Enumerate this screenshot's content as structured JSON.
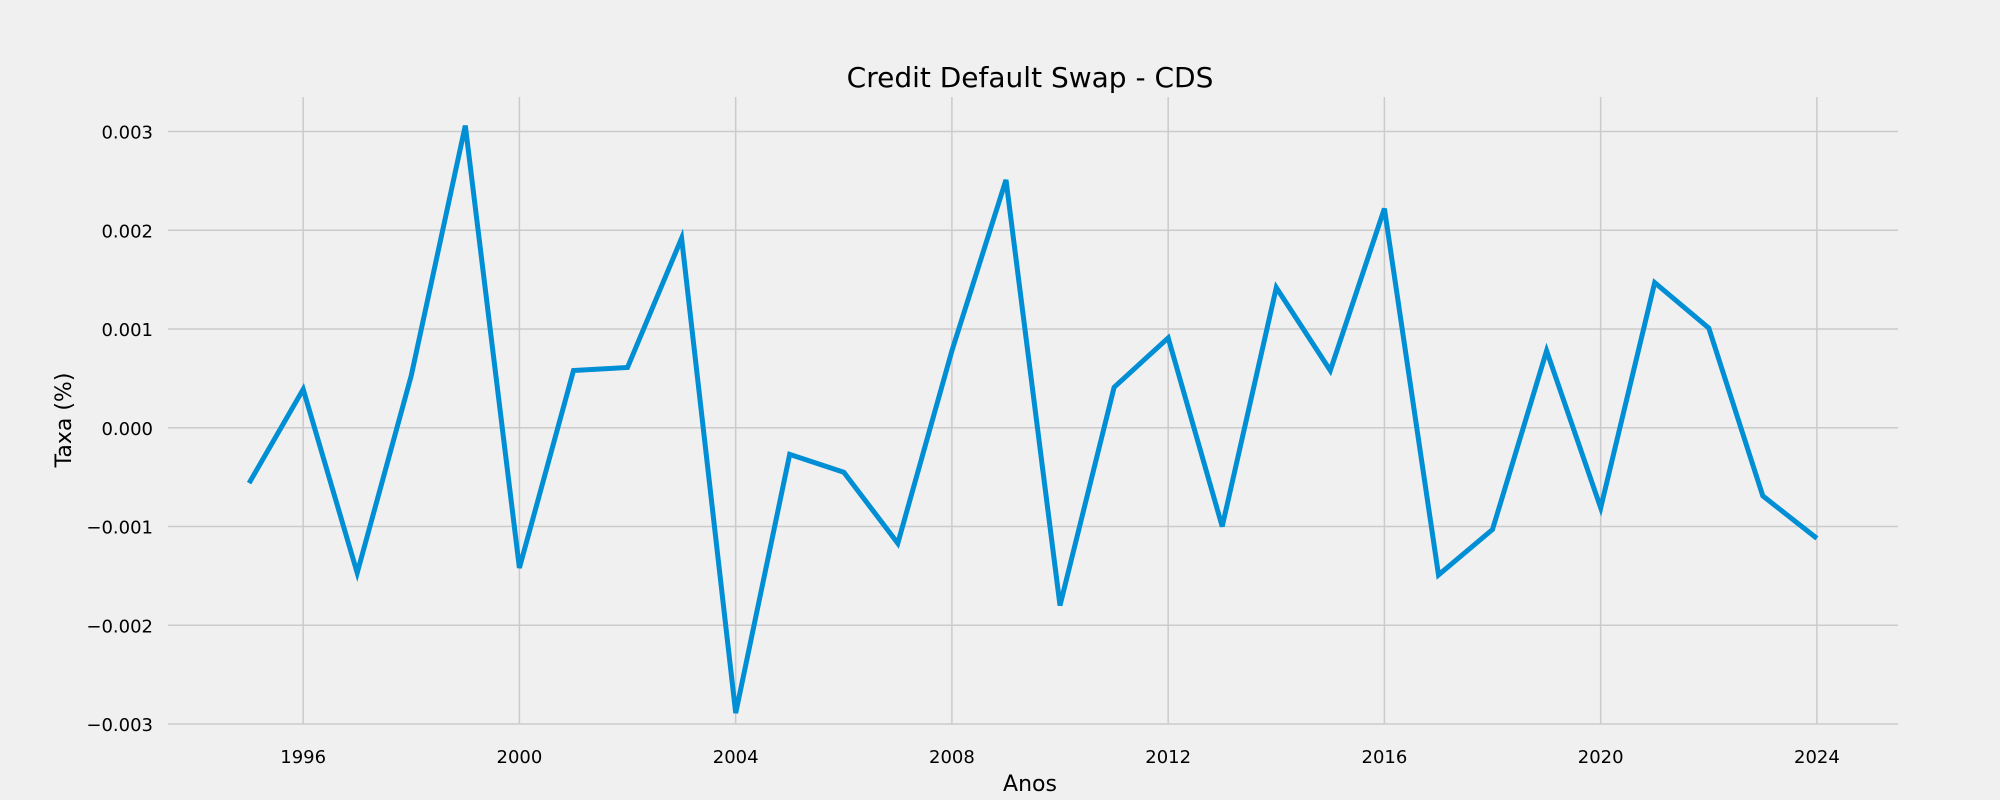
{
  "chart_data": {
    "type": "line",
    "title": "Credit Default Swap - CDS",
    "xlabel": "Anos",
    "ylabel": "Taxa (%)",
    "xlim": [
      1993.5,
      2025.5
    ],
    "ylim": [
      -0.003,
      0.00335
    ],
    "grid": true,
    "xticks": [
      1996,
      2000,
      2004,
      2008,
      2012,
      2016,
      2020,
      2024
    ],
    "xtick_labels": [
      "1996",
      "2000",
      "2004",
      "2008",
      "2012",
      "2016",
      "2020",
      "2024"
    ],
    "yticks": [
      -0.003,
      -0.002,
      -0.001,
      0.0,
      0.001,
      0.002,
      0.003
    ],
    "ytick_labels": [
      "−0.003",
      "−0.002",
      "−0.001",
      "0.000",
      "0.001",
      "0.002",
      "0.003"
    ],
    "series": [
      {
        "color": "#008fd5",
        "x": [
          1995,
          1996,
          1997,
          1998,
          1999,
          2000,
          2001,
          2002,
          2003,
          2004,
          2005,
          2006,
          2007,
          2008,
          2009,
          2010,
          2011,
          2012,
          2013,
          2014,
          2015,
          2016,
          2017,
          2018,
          2019,
          2020,
          2021,
          2022,
          2023,
          2024
        ],
        "values": [
          -0.00056,
          0.00039,
          -0.00147,
          0.00053,
          0.00306,
          -0.00142,
          0.00058,
          0.00061,
          0.00192,
          -0.00289,
          -0.00027,
          -0.00045,
          -0.00117,
          0.00078,
          0.00251,
          -0.0018,
          0.00041,
          0.00091,
          -0.001,
          0.00142,
          0.00058,
          0.00222,
          -0.00149,
          -0.00103,
          0.00078,
          -0.00081,
          0.00147,
          0.00101,
          -0.00069,
          -0.00112
        ]
      }
    ]
  }
}
